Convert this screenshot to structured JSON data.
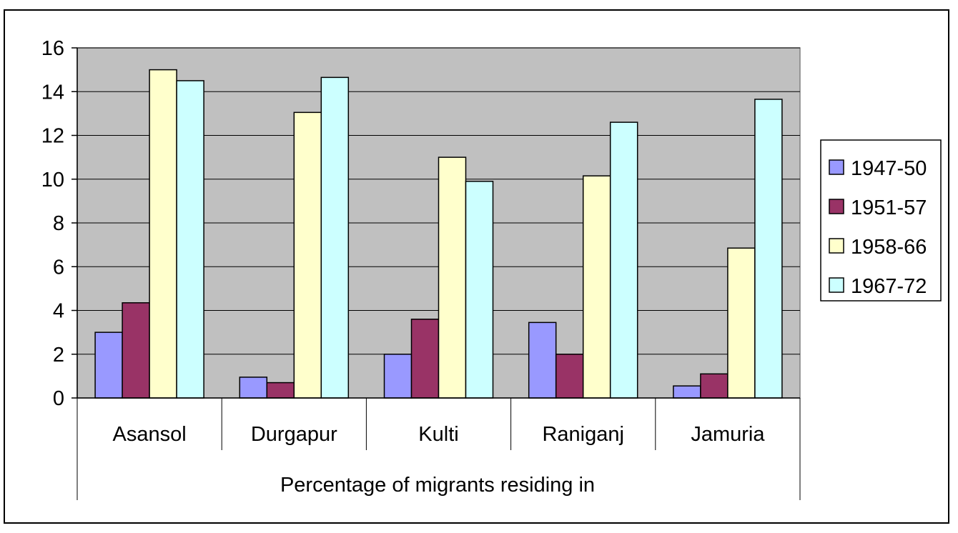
{
  "chart_data": {
    "type": "bar",
    "categories": [
      "Asansol",
      "Durgapur",
      "Kulti",
      "Raniganj",
      "Jamuria"
    ],
    "group_label": "Percentage of migrants residing in",
    "series": [
      {
        "name": "1947-50",
        "color": "#9999ff",
        "values": [
          3.0,
          0.95,
          2.0,
          3.45,
          0.55
        ]
      },
      {
        "name": "1951-57",
        "color": "#993366",
        "values": [
          4.35,
          0.7,
          3.6,
          2.0,
          1.1
        ]
      },
      {
        "name": "1958-66",
        "color": "#ffffcc",
        "values": [
          15.0,
          13.05,
          11.0,
          10.15,
          6.85
        ]
      },
      {
        "name": "1967-72",
        "color": "#ccffff",
        "values": [
          14.5,
          14.65,
          9.9,
          12.6,
          13.65
        ]
      }
    ],
    "ylim": [
      0,
      16
    ],
    "yticks": [
      "0",
      "2",
      "4",
      "6",
      "8",
      "10",
      "12",
      "14",
      "16"
    ],
    "grid": true,
    "plot_background": "#c0c0c0",
    "legend_position": "right"
  }
}
